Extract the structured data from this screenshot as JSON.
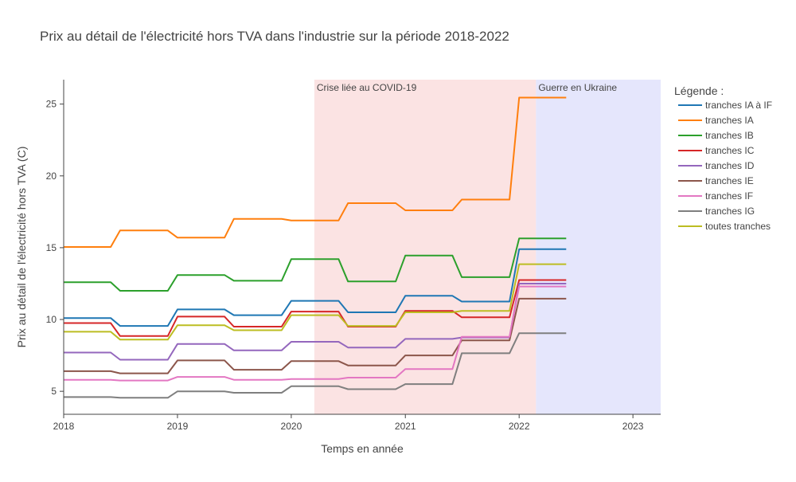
{
  "chart_data": {
    "type": "line",
    "title": "Prix au détail de l'électricité hors TVA dans l'industrie sur la période 2018-2022",
    "xlabel": "Temps en année",
    "ylabel": "Prix  au détail de l'électricité hors  TVA (C)",
    "xlim": [
      "2018-01-01",
      "2023-03-31"
    ],
    "ylim": [
      3.4,
      26.7
    ],
    "x_ticks": [
      {
        "value": "2018-01-01",
        "label": "2018"
      },
      {
        "value": "2019-01-01",
        "label": "2019"
      },
      {
        "value": "2020-01-01",
        "label": "2020"
      },
      {
        "value": "2021-01-01",
        "label": "2021"
      },
      {
        "value": "2022-01-01",
        "label": "2022"
      },
      {
        "value": "2023-01-01",
        "label": "2023"
      }
    ],
    "y_ticks": [
      5,
      10,
      15,
      20,
      25
    ],
    "grid": false,
    "legend_placement": "right",
    "legend_title": "Légende :",
    "annotations": [
      {
        "label": "Crise liée au COVID-19",
        "x_start": "2020-03-15",
        "x_end": "2022-02-24",
        "color": "#fbe3e3"
      },
      {
        "label": "Guerre en Ukraine",
        "x_start": "2022-02-24",
        "x_end": "2023-03-31",
        "color": "#e5e6fc"
      }
    ],
    "x": [
      "2018-01-01",
      "2018-06-01",
      "2018-07-01",
      "2018-12-01",
      "2019-01-01",
      "2019-06-01",
      "2019-07-01",
      "2019-12-01",
      "2020-01-01",
      "2020-06-01",
      "2020-07-01",
      "2020-12-01",
      "2021-01-01",
      "2021-06-01",
      "2021-07-01",
      "2021-12-01",
      "2022-01-01",
      "2022-06-01"
    ],
    "series": [
      {
        "name": "tranches IA à IF",
        "color": "#1f77b4",
        "values": [
          10.1,
          10.1,
          9.55,
          9.55,
          10.7,
          10.7,
          10.3,
          10.3,
          11.3,
          11.3,
          10.5,
          10.5,
          11.65,
          11.65,
          11.25,
          11.25,
          14.9,
          14.9
        ]
      },
      {
        "name": "tranches IA",
        "color": "#ff7f0e",
        "values": [
          15.05,
          15.05,
          16.2,
          16.2,
          15.7,
          15.7,
          17.0,
          17.0,
          16.9,
          16.9,
          18.1,
          18.1,
          17.6,
          17.6,
          18.35,
          18.35,
          25.45,
          25.45
        ]
      },
      {
        "name": "tranches IB",
        "color": "#2ca02c",
        "values": [
          12.6,
          12.6,
          12.0,
          12.0,
          13.1,
          13.1,
          12.7,
          12.7,
          14.2,
          14.2,
          12.65,
          12.65,
          14.45,
          14.45,
          12.95,
          12.95,
          15.65,
          15.65
        ]
      },
      {
        "name": "tranches IC",
        "color": "#d62728",
        "values": [
          9.75,
          9.75,
          8.85,
          8.85,
          10.2,
          10.2,
          9.5,
          9.5,
          10.55,
          10.55,
          9.5,
          9.5,
          10.6,
          10.6,
          10.15,
          10.15,
          12.75,
          12.75
        ]
      },
      {
        "name": "tranches ID",
        "color": "#9467bd",
        "values": [
          7.7,
          7.7,
          7.2,
          7.2,
          8.3,
          8.3,
          7.85,
          7.85,
          8.45,
          8.45,
          8.05,
          8.05,
          8.65,
          8.65,
          8.75,
          8.75,
          12.5,
          12.5
        ]
      },
      {
        "name": "tranches IE",
        "color": "#8c564b",
        "values": [
          6.4,
          6.4,
          6.25,
          6.25,
          7.15,
          7.15,
          6.5,
          6.5,
          7.1,
          7.1,
          6.8,
          6.8,
          7.5,
          7.5,
          8.55,
          8.55,
          11.45,
          11.45
        ]
      },
      {
        "name": "tranches IF",
        "color": "#e377c2",
        "values": [
          5.8,
          5.8,
          5.75,
          5.75,
          6.0,
          6.0,
          5.8,
          5.8,
          5.85,
          5.85,
          5.95,
          5.95,
          6.55,
          6.55,
          8.8,
          8.8,
          12.3,
          12.3
        ]
      },
      {
        "name": "tranches IG",
        "color": "#7f7f7f",
        "values": [
          4.6,
          4.6,
          4.55,
          4.55,
          5.0,
          5.0,
          4.9,
          4.9,
          5.35,
          5.35,
          5.15,
          5.15,
          5.5,
          5.5,
          7.65,
          7.65,
          9.05,
          9.05
        ]
      },
      {
        "name": "toutes tranches",
        "color": "#bcbd22",
        "values": [
          9.15,
          9.15,
          8.6,
          8.6,
          9.6,
          9.6,
          9.25,
          9.25,
          10.3,
          10.3,
          9.55,
          9.55,
          10.5,
          10.5,
          10.6,
          10.6,
          13.85,
          13.85
        ]
      }
    ]
  }
}
